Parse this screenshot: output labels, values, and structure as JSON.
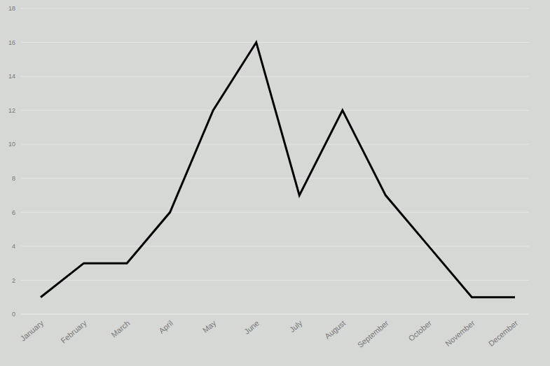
{
  "chart_data": {
    "type": "line",
    "categories": [
      "January",
      "February",
      "March",
      "April",
      "May",
      "June",
      "July",
      "August",
      "September",
      "October",
      "November",
      "December"
    ],
    "values": [
      1,
      3,
      3,
      6,
      12,
      16,
      7,
      12,
      7,
      4,
      1,
      1
    ],
    "color": "#000000",
    "ylim": [
      0,
      18
    ],
    "yticks": [
      0,
      2,
      4,
      6,
      8,
      10,
      12,
      14,
      16,
      18
    ],
    "grid": true
  }
}
